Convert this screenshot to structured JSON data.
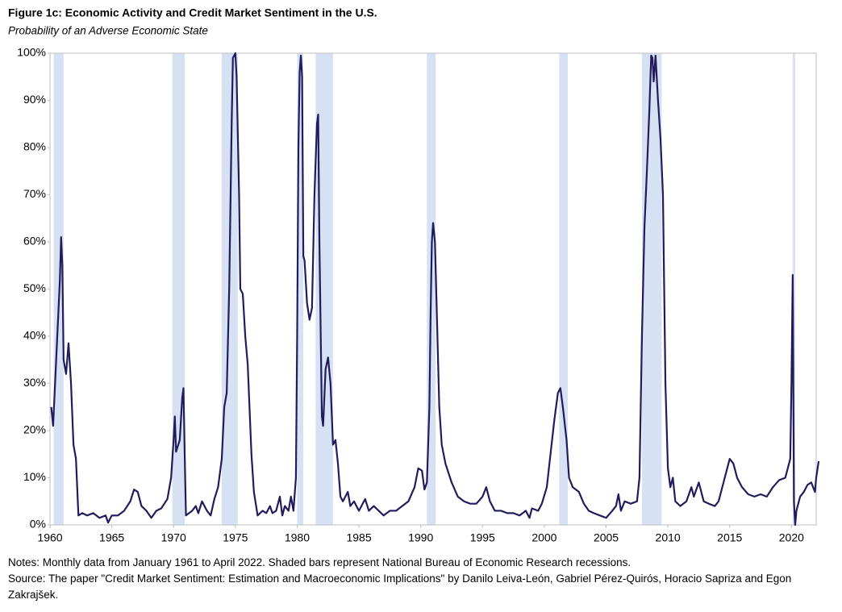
{
  "chart_data": {
    "type": "line",
    "title": "Figure 1c: Economic Activity and Credit Market Sentiment in the U.S.",
    "subtitle": "Probability of an Adverse Economic State",
    "notes": "Notes: Monthly data from January 1961  to April 2022.  Shaded bars represent National Bureau of Economic Research recessions.",
    "source": "Source: The paper \"Credit Market Sentiment: Estimation and Macroeconomic Implications\" by Danilo Leiva-León, Gabriel Pérez-Quirós, Horacio Sapriza and Egon Zakrajšek.",
    "xlim": [
      1960,
      2022
    ],
    "xticks": [
      1960,
      1965,
      1970,
      1975,
      1980,
      1985,
      1990,
      1995,
      2000,
      2005,
      2010,
      2015,
      2020
    ],
    "ylim": [
      0,
      100
    ],
    "yticks": [
      {
        "value": 0,
        "label": "0%"
      },
      {
        "value": 10,
        "label": "10%"
      },
      {
        "value": 20,
        "label": "20%"
      },
      {
        "value": 30,
        "label": "30%"
      },
      {
        "value": 40,
        "label": "40%"
      },
      {
        "value": 50,
        "label": "50%"
      },
      {
        "value": 60,
        "label": "60%"
      },
      {
        "value": 70,
        "label": "70%"
      },
      {
        "value": 80,
        "label": "80%"
      },
      {
        "value": 90,
        "label": "90%"
      },
      {
        "value": 100,
        "label": "100%"
      }
    ],
    "recession_color": "#d7e1f4",
    "recessions": [
      [
        1960.3,
        1961.1
      ],
      [
        1969.9,
        1970.9
      ],
      [
        1973.9,
        1975.2
      ],
      [
        1980.0,
        1980.5
      ],
      [
        1981.5,
        1982.9
      ],
      [
        1990.5,
        1991.2
      ],
      [
        2001.2,
        2001.9
      ],
      [
        2007.9,
        2009.5
      ],
      [
        2020.1,
        2020.3
      ]
    ],
    "color": "#211c5c",
    "x": [
      1960.1,
      1960.25,
      1960.5,
      1960.8,
      1960.9,
      1961.0,
      1961.1,
      1961.3,
      1961.5,
      1961.7,
      1961.9,
      1962.1,
      1962.3,
      1962.6,
      1963,
      1963.5,
      1964,
      1964.5,
      1964.7,
      1965,
      1965.5,
      1966,
      1966.5,
      1966.8,
      1967.1,
      1967.4,
      1967.8,
      1968.2,
      1968.6,
      1969,
      1969.5,
      1969.8,
      1970,
      1970.1,
      1970.2,
      1970.5,
      1970.7,
      1970.8,
      1970.9,
      1971,
      1971.5,
      1971.8,
      1972,
      1972.3,
      1972.7,
      1973,
      1973.3,
      1973.6,
      1973.9,
      1974.1,
      1974.3,
      1974.5,
      1974.7,
      1974.8,
      1975.0,
      1975.1,
      1975.3,
      1975.4,
      1975.6,
      1975.8,
      1976,
      1976.3,
      1976.5,
      1976.8,
      1977.2,
      1977.5,
      1977.8,
      1978,
      1978.3,
      1978.6,
      1978.8,
      1979,
      1979.3,
      1979.5,
      1979.7,
      1979.9,
      1980.0,
      1980.1,
      1980.2,
      1980.3,
      1980.4,
      1980.5,
      1980.6,
      1980.8,
      1981,
      1981.2,
      1981.4,
      1981.6,
      1981.7,
      1981.8,
      1982,
      1982.1,
      1982.3,
      1982.5,
      1982.7,
      1982.9,
      1983.1,
      1983.3,
      1983.5,
      1983.7,
      1983.9,
      1984.1,
      1984.3,
      1984.6,
      1985,
      1985.5,
      1985.8,
      1986.2,
      1986.6,
      1987,
      1987.5,
      1988,
      1988.5,
      1989,
      1989.5,
      1989.8,
      1990.1,
      1990.3,
      1990.5,
      1990.7,
      1990.8,
      1990.9,
      1991.0,
      1991.15,
      1991.3,
      1991.5,
      1991.7,
      1992,
      1992.5,
      1993,
      1993.5,
      1994,
      1994.5,
      1995,
      1995.3,
      1995.6,
      1996,
      1996.5,
      1997,
      1997.5,
      1998,
      1998.5,
      1998.8,
      1999,
      1999.5,
      1999.8,
      2000.2,
      2000.5,
      2000.8,
      2001.1,
      2001.3,
      2001.5,
      2001.8,
      2002,
      2002.3,
      2002.8,
      2003.2,
      2003.6,
      2004,
      2004.5,
      2005,
      2005.5,
      2005.8,
      2006.0,
      2006.2,
      2006.5,
      2007,
      2007.5,
      2007.7,
      2007.9,
      2008.1,
      2008.3,
      2008.5,
      2008.65,
      2008.75,
      2008.85,
      2009.0,
      2009.2,
      2009.4,
      2009.6,
      2009.8,
      2010.0,
      2010.2,
      2010.4,
      2010.6,
      2011,
      2011.5,
      2011.9,
      2012.1,
      2012.5,
      2012.9,
      2013.3,
      2013.8,
      2014.1,
      2014.5,
      2014.8,
      2015,
      2015.3,
      2015.6,
      2016,
      2016.5,
      2017,
      2017.5,
      2018,
      2018.5,
      2019,
      2019.5,
      2019.9,
      2020.0,
      2020.1,
      2020.2,
      2020.3,
      2020.4,
      2020.7,
      2021,
      2021.3,
      2021.6,
      2021.9,
      2022.0,
      2022.2
    ],
    "values": [
      25,
      21,
      35,
      52,
      61,
      55,
      35,
      32,
      38.5,
      30,
      17,
      14,
      2,
      2.5,
      2,
      2.5,
      1.5,
      2,
      0.5,
      2,
      2,
      3,
      5,
      7.5,
      7,
      4,
      3,
      1.5,
      3,
      3.5,
      5.5,
      10,
      18,
      23,
      15.5,
      18,
      27,
      29,
      15,
      2,
      3,
      4,
      2.5,
      5,
      3,
      2,
      5.5,
      8,
      14,
      25,
      28,
      50,
      85,
      99,
      100,
      95,
      70,
      50,
      49,
      40,
      34,
      15,
      7,
      2,
      3,
      2.5,
      4,
      2.5,
      3,
      6,
      2,
      4,
      3,
      6,
      3,
      10,
      40,
      80,
      96,
      99.5,
      95,
      57,
      56,
      47,
      43.5,
      46,
      70,
      85,
      87,
      60,
      23,
      21,
      33,
      35.5,
      30,
      17,
      18,
      13,
      6,
      5,
      6,
      7,
      4,
      5,
      3,
      5.5,
      3,
      4,
      3,
      2,
      3,
      3,
      4,
      5,
      8,
      12,
      11.5,
      7.5,
      9,
      25,
      45,
      60,
      64,
      60,
      45,
      25,
      17,
      13,
      9,
      6,
      5,
      4.5,
      4.5,
      6,
      8,
      5,
      3,
      3,
      2.5,
      2.5,
      2,
      3,
      1.5,
      3.5,
      3,
      4.5,
      8,
      15,
      22,
      28,
      29,
      25,
      18,
      10,
      8,
      7,
      4.5,
      3,
      2.5,
      2,
      1.5,
      3,
      4,
      6.5,
      3,
      5,
      4.5,
      5,
      10,
      40,
      63,
      75,
      88,
      99.5,
      99,
      94,
      99.5,
      90,
      82,
      70,
      30,
      12,
      8,
      10,
      5,
      4,
      5,
      8,
      6,
      9,
      5,
      4.5,
      4,
      5,
      9,
      12,
      14,
      13,
      10,
      8,
      6.5,
      6,
      6.5,
      6,
      8,
      9.5,
      10,
      14,
      30,
      53,
      5,
      0,
      3,
      6,
      7,
      8.5,
      9,
      7,
      10,
      13.5
    ]
  }
}
